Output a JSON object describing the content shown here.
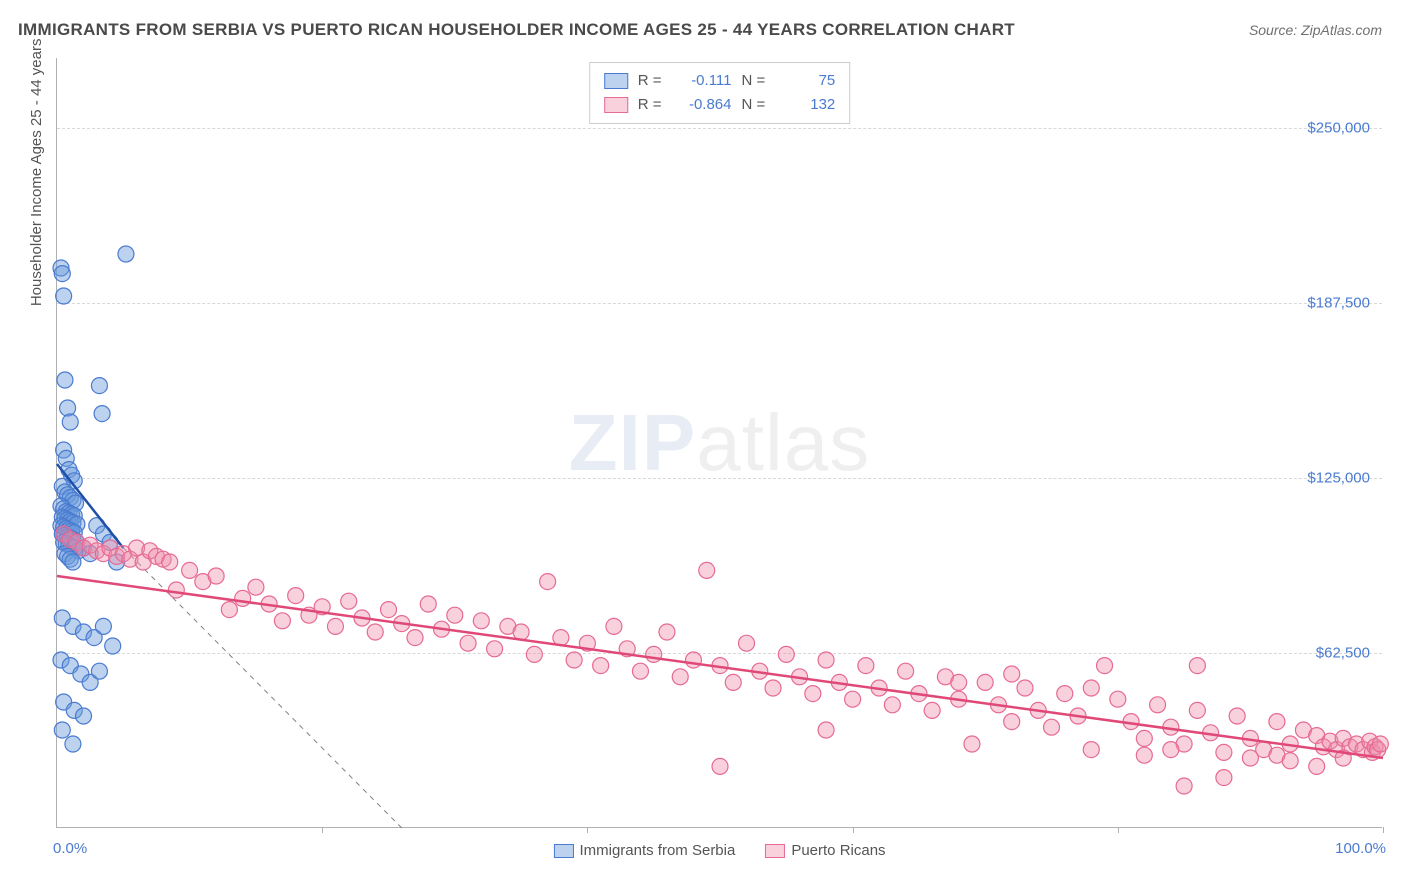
{
  "title": "IMMIGRANTS FROM SERBIA VS PUERTO RICAN HOUSEHOLDER INCOME AGES 25 - 44 YEARS CORRELATION CHART",
  "source": "Source: ZipAtlas.com",
  "y_axis_label": "Householder Income Ages 25 - 44 years",
  "watermark_a": "ZIP",
  "watermark_b": "atlas",
  "chart": {
    "type": "scatter",
    "xlim": [
      0,
      100
    ],
    "ylim": [
      0,
      275000
    ],
    "x_ticks": [
      0,
      20,
      40,
      60,
      80,
      100
    ],
    "y_ticks": [
      62500,
      125000,
      187500,
      250000
    ],
    "y_tick_labels": [
      "$62,500",
      "$125,000",
      "$187,500",
      "$250,000"
    ],
    "x_tick_labels_shown": {
      "left": "0.0%",
      "right": "100.0%"
    },
    "grid_color": "#d8d8d8",
    "axis_color": "#b0b0b0",
    "background": "#ffffff",
    "series": [
      {
        "name": "Immigrants from Serbia",
        "marker_fill": "rgba(106,156,220,0.45)",
        "marker_stroke": "#4a7bd0",
        "marker_radius": 8,
        "r_value": "-0.111",
        "n_value": "75",
        "regression": {
          "x1": 0,
          "y1": 130000,
          "x2": 5,
          "y2": 100000,
          "color": "#1f4fa8",
          "width": 2.5,
          "extrapolate_dash": true,
          "extrap_x2": 26,
          "extrap_y2": 0
        },
        "points": [
          [
            0.3,
            200000
          ],
          [
            0.4,
            198000
          ],
          [
            0.5,
            190000
          ],
          [
            5.2,
            205000
          ],
          [
            0.6,
            160000
          ],
          [
            0.8,
            150000
          ],
          [
            1.0,
            145000
          ],
          [
            3.2,
            158000
          ],
          [
            3.4,
            148000
          ],
          [
            0.5,
            135000
          ],
          [
            0.7,
            132000
          ],
          [
            0.9,
            128000
          ],
          [
            1.1,
            126000
          ],
          [
            1.3,
            124000
          ],
          [
            0.4,
            122000
          ],
          [
            0.6,
            120000
          ],
          [
            0.8,
            119000
          ],
          [
            1.0,
            118000
          ],
          [
            1.2,
            117000
          ],
          [
            1.4,
            116000
          ],
          [
            0.3,
            115000
          ],
          [
            0.5,
            114000
          ],
          [
            0.7,
            113000
          ],
          [
            0.9,
            112500
          ],
          [
            1.1,
            112000
          ],
          [
            1.3,
            111500
          ],
          [
            0.4,
            111000
          ],
          [
            0.6,
            110500
          ],
          [
            0.8,
            110000
          ],
          [
            1.0,
            109500
          ],
          [
            1.2,
            109000
          ],
          [
            1.5,
            108500
          ],
          [
            0.3,
            108000
          ],
          [
            0.5,
            107500
          ],
          [
            0.7,
            107000
          ],
          [
            0.9,
            106500
          ],
          [
            1.1,
            106000
          ],
          [
            1.3,
            105500
          ],
          [
            0.4,
            105000
          ],
          [
            0.6,
            104500
          ],
          [
            0.8,
            104000
          ],
          [
            1.0,
            103500
          ],
          [
            1.2,
            103000
          ],
          [
            1.4,
            102500
          ],
          [
            0.5,
            102000
          ],
          [
            0.7,
            101500
          ],
          [
            0.9,
            101000
          ],
          [
            1.1,
            100500
          ],
          [
            1.3,
            100000
          ],
          [
            1.6,
            99000
          ],
          [
            0.6,
            98000
          ],
          [
            0.8,
            97000
          ],
          [
            1.0,
            96000
          ],
          [
            1.2,
            95000
          ],
          [
            2.0,
            100000
          ],
          [
            2.5,
            98000
          ],
          [
            3.0,
            108000
          ],
          [
            3.5,
            105000
          ],
          [
            4.0,
            102000
          ],
          [
            4.5,
            95000
          ],
          [
            0.4,
            75000
          ],
          [
            1.2,
            72000
          ],
          [
            2.0,
            70000
          ],
          [
            2.8,
            68000
          ],
          [
            3.5,
            72000
          ],
          [
            4.2,
            65000
          ],
          [
            0.3,
            60000
          ],
          [
            1.0,
            58000
          ],
          [
            1.8,
            55000
          ],
          [
            2.5,
            52000
          ],
          [
            3.2,
            56000
          ],
          [
            0.5,
            45000
          ],
          [
            1.3,
            42000
          ],
          [
            2.0,
            40000
          ],
          [
            0.4,
            35000
          ],
          [
            1.2,
            30000
          ]
        ]
      },
      {
        "name": "Puerto Ricans",
        "marker_fill": "rgba(238,140,170,0.40)",
        "marker_stroke": "#e66a94",
        "marker_radius": 8,
        "r_value": "-0.864",
        "n_value": "132",
        "regression": {
          "x1": 0,
          "y1": 90000,
          "x2": 100,
          "y2": 25000,
          "color": "#e04878",
          "width": 2.5
        },
        "points": [
          [
            0.5,
            105000
          ],
          [
            1.0,
            103000
          ],
          [
            1.5,
            102000
          ],
          [
            2.0,
            100000
          ],
          [
            2.5,
            101000
          ],
          [
            3.0,
            99000
          ],
          [
            3.5,
            98000
          ],
          [
            4.0,
            100000
          ],
          [
            4.5,
            97000
          ],
          [
            5.0,
            98000
          ],
          [
            5.5,
            96000
          ],
          [
            6.0,
            100000
          ],
          [
            6.5,
            95000
          ],
          [
            7.0,
            99000
          ],
          [
            7.5,
            97000
          ],
          [
            8.0,
            96000
          ],
          [
            8.5,
            95000
          ],
          [
            9.0,
            85000
          ],
          [
            10.0,
            92000
          ],
          [
            11.0,
            88000
          ],
          [
            12.0,
            90000
          ],
          [
            13.0,
            78000
          ],
          [
            14.0,
            82000
          ],
          [
            15.0,
            86000
          ],
          [
            16.0,
            80000
          ],
          [
            17.0,
            74000
          ],
          [
            18.0,
            83000
          ],
          [
            19.0,
            76000
          ],
          [
            20.0,
            79000
          ],
          [
            21.0,
            72000
          ],
          [
            22.0,
            81000
          ],
          [
            23.0,
            75000
          ],
          [
            24.0,
            70000
          ],
          [
            25.0,
            78000
          ],
          [
            26.0,
            73000
          ],
          [
            27.0,
            68000
          ],
          [
            28.0,
            80000
          ],
          [
            29.0,
            71000
          ],
          [
            30.0,
            76000
          ],
          [
            31.0,
            66000
          ],
          [
            32.0,
            74000
          ],
          [
            33.0,
            64000
          ],
          [
            34.0,
            72000
          ],
          [
            35.0,
            70000
          ],
          [
            36.0,
            62000
          ],
          [
            37.0,
            88000
          ],
          [
            38.0,
            68000
          ],
          [
            39.0,
            60000
          ],
          [
            40.0,
            66000
          ],
          [
            41.0,
            58000
          ],
          [
            42.0,
            72000
          ],
          [
            43.0,
            64000
          ],
          [
            44.0,
            56000
          ],
          [
            45.0,
            62000
          ],
          [
            46.0,
            70000
          ],
          [
            47.0,
            54000
          ],
          [
            48.0,
            60000
          ],
          [
            49.0,
            92000
          ],
          [
            50.0,
            58000
          ],
          [
            51.0,
            52000
          ],
          [
            52.0,
            66000
          ],
          [
            53.0,
            56000
          ],
          [
            54.0,
            50000
          ],
          [
            55.0,
            62000
          ],
          [
            56.0,
            54000
          ],
          [
            57.0,
            48000
          ],
          [
            58.0,
            60000
          ],
          [
            59.0,
            52000
          ],
          [
            60.0,
            46000
          ],
          [
            61.0,
            58000
          ],
          [
            62.0,
            50000
          ],
          [
            63.0,
            44000
          ],
          [
            64.0,
            56000
          ],
          [
            65.0,
            48000
          ],
          [
            66.0,
            42000
          ],
          [
            67.0,
            54000
          ],
          [
            68.0,
            46000
          ],
          [
            69.0,
            30000
          ],
          [
            70.0,
            52000
          ],
          [
            71.0,
            44000
          ],
          [
            72.0,
            38000
          ],
          [
            73.0,
            50000
          ],
          [
            74.0,
            42000
          ],
          [
            75.0,
            36000
          ],
          [
            76.0,
            48000
          ],
          [
            77.0,
            40000
          ],
          [
            78.0,
            28000
          ],
          [
            79.0,
            58000
          ],
          [
            80.0,
            46000
          ],
          [
            81.0,
            38000
          ],
          [
            82.0,
            32000
          ],
          [
            83.0,
            44000
          ],
          [
            84.0,
            36000
          ],
          [
            85.0,
            30000
          ],
          [
            86.0,
            42000
          ],
          [
            87.0,
            34000
          ],
          [
            88.0,
            18000
          ],
          [
            89.0,
            40000
          ],
          [
            90.0,
            32000
          ],
          [
            91.0,
            28000
          ],
          [
            92.0,
            38000
          ],
          [
            93.0,
            30000
          ],
          [
            94.0,
            35000
          ],
          [
            95.0,
            33000
          ],
          [
            95.5,
            29000
          ],
          [
            96.0,
            31000
          ],
          [
            96.5,
            28000
          ],
          [
            97.0,
            32000
          ],
          [
            97.5,
            29000
          ],
          [
            98.0,
            30000
          ],
          [
            98.5,
            28000
          ],
          [
            99.0,
            31000
          ],
          [
            99.2,
            27000
          ],
          [
            99.4,
            29000
          ],
          [
            99.6,
            28000
          ],
          [
            99.8,
            30000
          ],
          [
            88.0,
            27000
          ],
          [
            90.0,
            25000
          ],
          [
            92.0,
            26000
          ],
          [
            82.0,
            26000
          ],
          [
            84.0,
            28000
          ],
          [
            78.0,
            50000
          ],
          [
            72.0,
            55000
          ],
          [
            68.0,
            52000
          ],
          [
            58.0,
            35000
          ],
          [
            50.0,
            22000
          ],
          [
            86.0,
            58000
          ],
          [
            93.0,
            24000
          ],
          [
            95.0,
            22000
          ],
          [
            97.0,
            25000
          ],
          [
            85.0,
            15000
          ]
        ]
      }
    ]
  },
  "legend": {
    "r_label": "R =",
    "n_label": "N =",
    "bottom": [
      {
        "name": "Immigrants from Serbia",
        "fill": "rgba(106,156,220,0.45)",
        "stroke": "#4a7bd0"
      },
      {
        "name": "Puerto Ricans",
        "fill": "rgba(238,140,170,0.40)",
        "stroke": "#e66a94"
      }
    ]
  }
}
